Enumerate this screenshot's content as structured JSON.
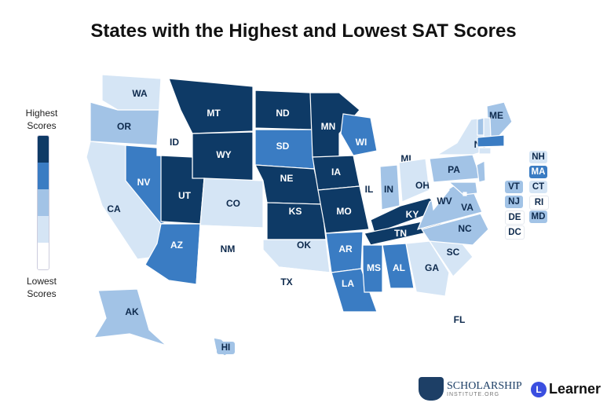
{
  "title": "States with the Highest and Lowest SAT Scores",
  "legend": {
    "highest": "Highest Scores",
    "lowest": "Lowest Scores"
  },
  "colors": {
    "5": "#0e3a66",
    "4": "#3a7cc3",
    "3": "#a2c3e6",
    "2": "#d5e5f5",
    "1": "#ffffff"
  },
  "states": {
    "WA": 2,
    "OR": 3,
    "CA": 2,
    "NV": 4,
    "ID": 1,
    "MT": 5,
    "WY": 5,
    "UT": 5,
    "AZ": 4,
    "CO": 2,
    "NM": 1,
    "ND": 5,
    "SD": 4,
    "NE": 5,
    "KS": 5,
    "OK": 2,
    "TX": 1,
    "MN": 5,
    "IA": 5,
    "MO": 5,
    "AR": 4,
    "LA": 4,
    "WI": 4,
    "IL": 1,
    "MI": 1,
    "IN": 3,
    "OH": 2,
    "KY": 5,
    "TN": 5,
    "MS": 4,
    "AL": 4,
    "GA": 2,
    "FL": 1,
    "SC": 2,
    "NC": 3,
    "VA": 3,
    "WV": 1,
    "PA": 3,
    "NY": 2,
    "ME": 3,
    "AK": 3,
    "HI": 3,
    "NH": 2,
    "MA": 4,
    "VT": 3,
    "CT": 2,
    "NJ": 3,
    "RI": 1,
    "DE": 1,
    "MD": 3,
    "DC": 1
  },
  "small_states": [
    "NH",
    "MA",
    "VT",
    "CT",
    "NJ",
    "RI",
    "DE",
    "MD",
    "DC"
  ],
  "logos": {
    "scholarship": "SCHOLARSHIP",
    "scholarship_sub": "INSTITUTE.ORG",
    "learner": "Learner",
    "learner_mark": "L"
  }
}
